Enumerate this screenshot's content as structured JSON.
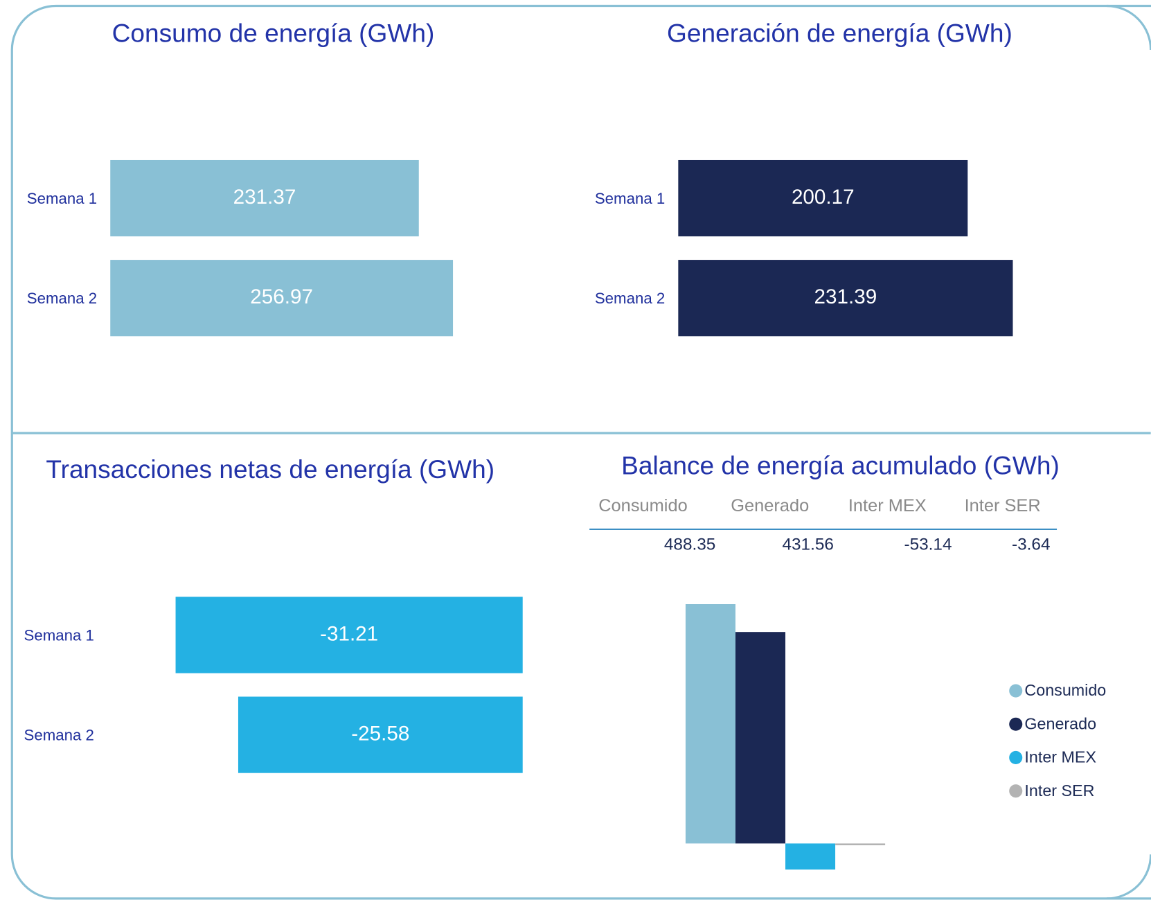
{
  "chart_data": [
    {
      "type": "bar",
      "orientation": "horizontal",
      "title": "Consumo de energía (GWh)",
      "categories": [
        "Semana 1",
        "Semana 2"
      ],
      "values": [
        231.37,
        256.97
      ],
      "color": "#89c0d5"
    },
    {
      "type": "bar",
      "orientation": "horizontal",
      "title": "Generación de energía (GWh)",
      "categories": [
        "Semana 1",
        "Semana 2"
      ],
      "values": [
        200.17,
        231.39
      ],
      "color": "#1b2854"
    },
    {
      "type": "bar",
      "orientation": "horizontal",
      "title": "Transacciones netas de energía (GWh)",
      "categories": [
        "Semana 1",
        "Semana 2"
      ],
      "values": [
        -31.21,
        -25.58
      ],
      "color": "#24b1e3"
    },
    {
      "type": "bar",
      "orientation": "vertical",
      "title": "Balance de energía acumulado (GWh)",
      "categories": [
        "Consumido",
        "Generado",
        "Inter MEX",
        "Inter SER"
      ],
      "values": [
        488.35,
        431.56,
        -53.14,
        -3.64
      ],
      "colors": [
        "#89c0d5",
        "#1b2854",
        "#24b1e3",
        "#b3b3b3"
      ],
      "legend": "right"
    }
  ]
}
